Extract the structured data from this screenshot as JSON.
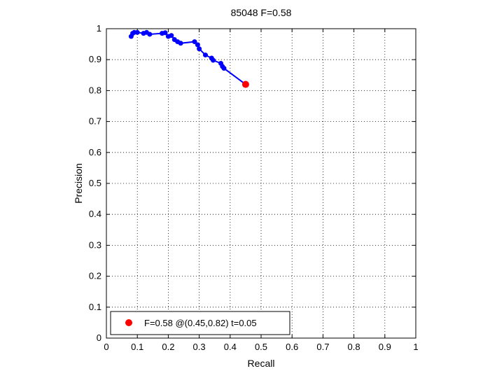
{
  "chart_data": {
    "type": "line",
    "title": "85048 F=0.58",
    "xlabel": "Recall",
    "ylabel": "Precision",
    "xlim": [
      0,
      1
    ],
    "ylim": [
      0,
      1
    ],
    "xticks": [
      "0",
      "0.1",
      "0.2",
      "0.3",
      "0.4",
      "0.5",
      "0.6",
      "0.7",
      "0.8",
      "0.9",
      "1"
    ],
    "yticks": [
      "0",
      "0.1",
      "0.2",
      "0.3",
      "0.4",
      "0.5",
      "0.6",
      "0.7",
      "0.8",
      "0.9",
      "1"
    ],
    "grid": true,
    "series": [
      {
        "color": "#0000ff",
        "x": [
          0.08,
          0.085,
          0.09,
          0.1,
          0.12,
          0.13,
          0.14,
          0.18,
          0.19,
          0.2,
          0.21,
          0.22,
          0.23,
          0.24,
          0.285,
          0.295,
          0.3,
          0.32,
          0.34,
          0.345,
          0.37,
          0.375,
          0.38,
          0.45
        ],
        "y": [
          0.975,
          0.985,
          0.988,
          0.988,
          0.985,
          0.988,
          0.982,
          0.985,
          0.987,
          0.975,
          0.978,
          0.965,
          0.958,
          0.953,
          0.958,
          0.948,
          0.935,
          0.915,
          0.905,
          0.898,
          0.888,
          0.878,
          0.872,
          0.82
        ]
      }
    ],
    "best_point": {
      "x": 0.45,
      "y": 0.82,
      "color": "#ff0000"
    },
    "legend": {
      "position": "bottom-left",
      "entries": [
        "F=0.58 @(0.45,0.82) t=0.05"
      ]
    }
  }
}
